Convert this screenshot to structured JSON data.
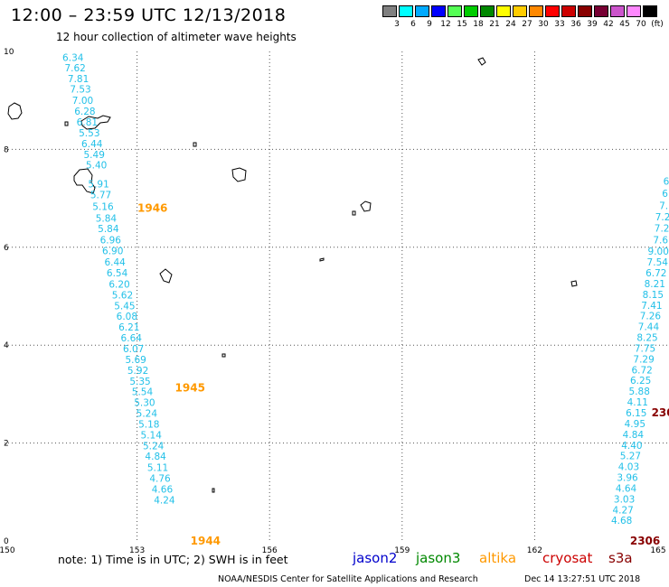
{
  "header": {
    "title": "12:00 – 23:59 UTC 12/13/2018",
    "subtitle": "12 hour collection of altimeter wave heights"
  },
  "color_scale": {
    "labels": [
      "3",
      "6",
      "9",
      "12",
      "15",
      "18",
      "21",
      "24",
      "27",
      "30",
      "33",
      "36",
      "39",
      "42",
      "45",
      "70",
      "(ft)"
    ],
    "colors": [
      "#808080",
      "#00ffff",
      "#00aaff",
      "#0000ff",
      "#55ff55",
      "#00cc00",
      "#008800",
      "#ffff00",
      "#ffcc00",
      "#ff8800",
      "#ff0000",
      "#cc0000",
      "#880000",
      "#770033",
      "#cc55cc",
      "#ff88ff",
      "#000000"
    ]
  },
  "footer": {
    "note": "note:  1) Time is in UTC;  2) SWH is in feet",
    "missions": [
      {
        "name": "jason2",
        "color": "#0000cc"
      },
      {
        "name": "jason3",
        "color": "#008800"
      },
      {
        "name": "altika",
        "color": "#ff9900"
      },
      {
        "name": "cryosat",
        "color": "#cc0000"
      },
      {
        "name": "s3a",
        "color": "#880000"
      }
    ],
    "credit": "NOAA/NESDIS Center for Satellite Applications and Research",
    "timestamp": "Dec 14 13:27:51 UTC 2018"
  },
  "chart_data": {
    "type": "scatter",
    "title": "12:00 – 23:59 UTC 12/13/2018",
    "xlim": [
      150,
      165
    ],
    "ylim": [
      0,
      10
    ],
    "x_ticks": [
      150,
      153,
      156,
      159,
      162,
      165
    ],
    "x_tick_labels": [
      "150",
      "153",
      "156",
      "159",
      "162",
      "165"
    ],
    "y_ticks": [
      0,
      2,
      4,
      6,
      8,
      10
    ],
    "y_tick_labels": [
      "0",
      "2",
      "4",
      "6",
      "8",
      "10"
    ],
    "grid": true,
    "series": [
      {
        "name": "altika",
        "color": "#22c0e8",
        "points": [
          {
            "x": 151.55,
            "y": 9.88,
            "v": "6.34"
          },
          {
            "x": 151.6,
            "y": 9.67,
            "v": "7.62"
          },
          {
            "x": 151.67,
            "y": 9.45,
            "v": "7.81"
          },
          {
            "x": 151.72,
            "y": 9.23,
            "v": "7.53"
          },
          {
            "x": 151.77,
            "y": 9.0,
            "v": "7.00"
          },
          {
            "x": 151.82,
            "y": 8.78,
            "v": "6.28"
          },
          {
            "x": 151.87,
            "y": 8.56,
            "v": "6.81"
          },
          {
            "x": 151.92,
            "y": 8.34,
            "v": "5.53"
          },
          {
            "x": 151.98,
            "y": 8.12,
            "v": "6.44"
          },
          {
            "x": 152.03,
            "y": 7.9,
            "v": "5.49"
          },
          {
            "x": 152.08,
            "y": 7.68,
            "v": "5.40"
          },
          {
            "x": 152.13,
            "y": 7.3,
            "v": "5.91"
          },
          {
            "x": 152.18,
            "y": 7.08,
            "v": "5.77"
          },
          {
            "x": 152.23,
            "y": 6.84,
            "v": "5.16"
          },
          {
            "x": 152.3,
            "y": 6.6,
            "v": "5.84"
          },
          {
            "x": 152.35,
            "y": 6.38,
            "v": "5.84"
          },
          {
            "x": 152.4,
            "y": 6.15,
            "v": "6.96"
          },
          {
            "x": 152.45,
            "y": 5.93,
            "v": "6.90"
          },
          {
            "x": 152.5,
            "y": 5.7,
            "v": "6.44"
          },
          {
            "x": 152.55,
            "y": 5.48,
            "v": "6.54"
          },
          {
            "x": 152.6,
            "y": 5.25,
            "v": "6.20"
          },
          {
            "x": 152.67,
            "y": 5.03,
            "v": "5.62"
          },
          {
            "x": 152.72,
            "y": 4.81,
            "v": "5.45"
          },
          {
            "x": 152.77,
            "y": 4.59,
            "v": "6.08"
          },
          {
            "x": 152.82,
            "y": 4.37,
            "v": "6.21"
          },
          {
            "x": 152.87,
            "y": 4.15,
            "v": "6.64"
          },
          {
            "x": 152.92,
            "y": 3.93,
            "v": "6.07"
          },
          {
            "x": 152.97,
            "y": 3.71,
            "v": "5.69"
          },
          {
            "x": 153.02,
            "y": 3.49,
            "v": "5.92"
          },
          {
            "x": 153.07,
            "y": 3.27,
            "v": "5.35"
          },
          {
            "x": 153.12,
            "y": 3.05,
            "v": "5.54"
          },
          {
            "x": 153.17,
            "y": 2.83,
            "v": "5.30"
          },
          {
            "x": 153.22,
            "y": 2.61,
            "v": "5.24"
          },
          {
            "x": 153.27,
            "y": 2.39,
            "v": "5.18"
          },
          {
            "x": 153.32,
            "y": 2.17,
            "v": "5.14"
          },
          {
            "x": 153.37,
            "y": 1.95,
            "v": "5.24"
          },
          {
            "x": 153.42,
            "y": 1.73,
            "v": "4.84"
          },
          {
            "x": 153.47,
            "y": 1.5,
            "v": "5.11"
          },
          {
            "x": 153.52,
            "y": 1.28,
            "v": "4.76"
          },
          {
            "x": 153.57,
            "y": 1.06,
            "v": "4.66"
          },
          {
            "x": 153.62,
            "y": 0.84,
            "v": "4.24"
          }
        ]
      },
      {
        "name": "cryosat",
        "color": "#22c0e8",
        "points": [
          {
            "x": 164.98,
            "y": 7.35,
            "v": "6"
          },
          {
            "x": 164.95,
            "y": 7.1,
            "v": "6"
          },
          {
            "x": 164.92,
            "y": 6.85,
            "v": "7."
          },
          {
            "x": 164.9,
            "y": 6.62,
            "v": "7.2"
          },
          {
            "x": 164.88,
            "y": 6.39,
            "v": "7.2"
          },
          {
            "x": 164.85,
            "y": 6.15,
            "v": "7.6"
          },
          {
            "x": 164.8,
            "y": 5.92,
            "v": "9.00"
          },
          {
            "x": 164.78,
            "y": 5.7,
            "v": "7.54"
          },
          {
            "x": 164.75,
            "y": 5.48,
            "v": "6.72"
          },
          {
            "x": 164.72,
            "y": 5.26,
            "v": "8.21"
          },
          {
            "x": 164.68,
            "y": 5.04,
            "v": "8.15"
          },
          {
            "x": 164.65,
            "y": 4.82,
            "v": "7.41"
          },
          {
            "x": 164.62,
            "y": 4.6,
            "v": "7.26"
          },
          {
            "x": 164.58,
            "y": 4.38,
            "v": "7.44"
          },
          {
            "x": 164.55,
            "y": 4.16,
            "v": "8.25"
          },
          {
            "x": 164.5,
            "y": 3.94,
            "v": "7.75"
          },
          {
            "x": 164.47,
            "y": 3.72,
            "v": "7.29"
          },
          {
            "x": 164.43,
            "y": 3.5,
            "v": "6.72"
          },
          {
            "x": 164.4,
            "y": 3.28,
            "v": "6.25"
          },
          {
            "x": 164.37,
            "y": 3.06,
            "v": "5.88"
          },
          {
            "x": 164.33,
            "y": 2.84,
            "v": "4.11"
          },
          {
            "x": 164.3,
            "y": 2.62,
            "v": "6.15"
          },
          {
            "x": 164.27,
            "y": 2.4,
            "v": "4.95"
          },
          {
            "x": 164.23,
            "y": 2.18,
            "v": "4.84"
          },
          {
            "x": 164.2,
            "y": 1.96,
            "v": "4.40"
          },
          {
            "x": 164.17,
            "y": 1.74,
            "v": "5.27"
          },
          {
            "x": 164.13,
            "y": 1.52,
            "v": "4.03"
          },
          {
            "x": 164.1,
            "y": 1.3,
            "v": "3.96"
          },
          {
            "x": 164.07,
            "y": 1.08,
            "v": "4.64"
          },
          {
            "x": 164.03,
            "y": 0.86,
            "v": "3.03"
          },
          {
            "x": 164.0,
            "y": 0.64,
            "v": "4.27"
          },
          {
            "x": 163.97,
            "y": 0.42,
            "v": "4.68"
          }
        ]
      }
    ],
    "time_labels": [
      {
        "x": 153.35,
        "y": 6.8,
        "label": "1946",
        "color": "#ff9900"
      },
      {
        "x": 154.2,
        "y": 3.13,
        "label": "1945",
        "color": "#ff9900"
      },
      {
        "x": 154.55,
        "y": 0.0,
        "label": "1944",
        "color": "#ff9900"
      },
      {
        "x": 164.9,
        "y": 2.62,
        "label": "230",
        "color": "#880000"
      },
      {
        "x": 164.5,
        "y": 0.0,
        "label": "2306",
        "color": "#880000"
      }
    ]
  }
}
